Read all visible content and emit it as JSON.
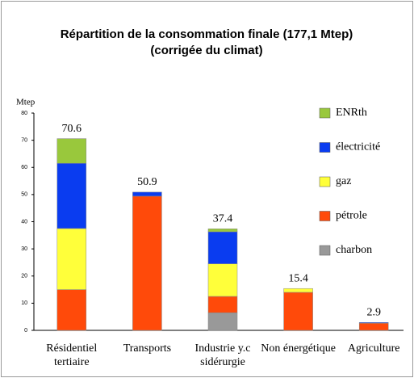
{
  "chart_data": {
    "type": "stacked_bar",
    "title": "Répartition de la consommation finale (177,1 Mtep)",
    "subtitle": "(corrigée du climat)",
    "y_label": "Mtep",
    "categories": [
      "Résidentiel tertiaire",
      "Transports",
      "Industrie y.c sidérurgie",
      "Non énergétique",
      "Agriculture"
    ],
    "series": [
      {
        "name": "charbon",
        "color": "#999999",
        "values": [
          0,
          0,
          6.5,
          0,
          0
        ]
      },
      {
        "name": "pétrole",
        "color": "#ff4a0a",
        "values": [
          15,
          49.4,
          6,
          14,
          2.6
        ]
      },
      {
        "name": "gaz",
        "color": "#ffff3a",
        "values": [
          22.5,
          0,
          12,
          1.4,
          0
        ]
      },
      {
        "name": "électricité",
        "color": "#0a3cf0",
        "values": [
          24,
          1.5,
          11.8,
          0,
          0.3
        ]
      },
      {
        "name": "ENRth",
        "color": "#99c83c",
        "values": [
          9.1,
          0,
          1.1,
          0,
          0
        ]
      }
    ],
    "totals": [
      70.6,
      50.9,
      37.4,
      15.4,
      2.9
    ],
    "ylim": [
      0,
      80
    ],
    "yticks": [
      0,
      10,
      20,
      30,
      40,
      50,
      60,
      70,
      80
    ]
  }
}
